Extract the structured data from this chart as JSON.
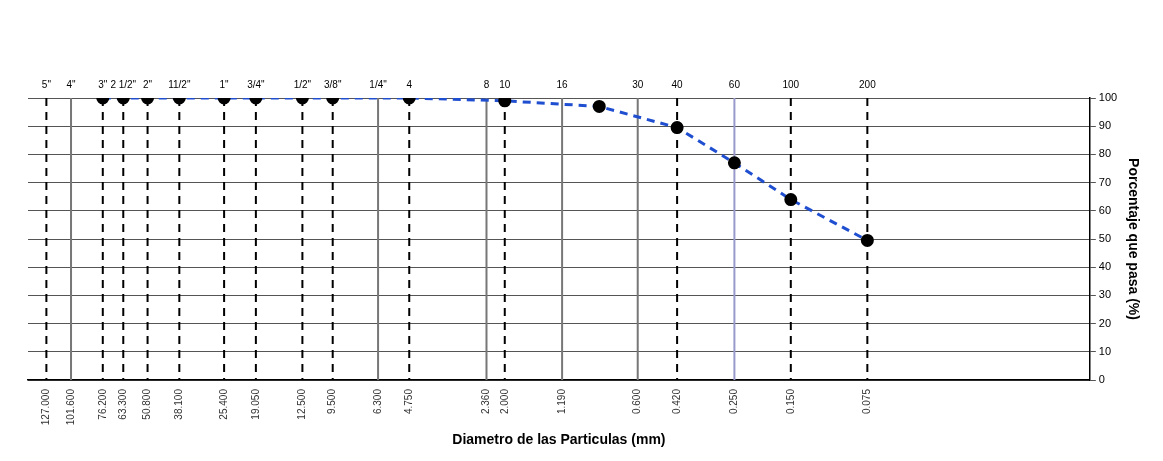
{
  "chart_data": {
    "type": "line",
    "xlabel": "Diametro de las Particulas (mm)",
    "ylabel": "Porcentaje que pasa (%)",
    "log": "x",
    "xlim": [
      150,
      0.01
    ],
    "xticks": [
      {
        "value": 127,
        "label": "127.000"
      },
      {
        "value": 101.6,
        "label": "101.600"
      },
      {
        "value": 76.2,
        "label": "76.200"
      },
      {
        "value": 63.3,
        "label": "63.300"
      },
      {
        "value": 50.8,
        "label": "50.800"
      },
      {
        "value": 38.1,
        "label": "38.100"
      },
      {
        "value": 25.4,
        "label": "25.400"
      },
      {
        "value": 19.05,
        "label": "19.050"
      },
      {
        "value": 12.5,
        "label": "12.500"
      },
      {
        "value": 9.5,
        "label": "9.500"
      },
      {
        "value": 6.3,
        "label": "6.300"
      },
      {
        "value": 4.75,
        "label": "4.750"
      },
      {
        "value": 2.36,
        "label": "2.360"
      },
      {
        "value": 2,
        "label": "2.000"
      },
      {
        "value": 1.19,
        "label": "1.190"
      },
      {
        "value": 0.6,
        "label": "0.600"
      },
      {
        "value": 0.42,
        "label": "0.420"
      },
      {
        "value": 0.25,
        "label": "0.250"
      },
      {
        "value": 0.15,
        "label": "0.150"
      },
      {
        "value": 0.075,
        "label": "0.075"
      }
    ],
    "annotations": [
      {
        "text": "5\"",
        "x": 127,
        "y": 100
      },
      {
        "text": "4\"",
        "x": 101.6,
        "y": 100
      },
      {
        "text": "3\"",
        "x": 76.2,
        "y": 100
      },
      {
        "text": "2 1/2\"",
        "x": 63.3,
        "y": 100
      },
      {
        "text": "2\"",
        "x": 50.8,
        "y": 100
      },
      {
        "text": "11/2\"",
        "x": 38.1,
        "y": 100
      },
      {
        "text": "1\"",
        "x": 25.4,
        "y": 100
      },
      {
        "text": "3/4\"",
        "x": 19.05,
        "y": 100
      },
      {
        "text": "1/2\"",
        "x": 12.5,
        "y": 100
      },
      {
        "text": "3/8\"",
        "x": 9.5,
        "y": 100
      },
      {
        "text": "1/4\"",
        "x": 6.3,
        "y": 100
      },
      {
        "text": "4",
        "x": 4.75,
        "y": 100
      },
      {
        "text": "8",
        "x": 2.36,
        "y": 100
      },
      {
        "text": "10",
        "x": 2,
        "y": 100
      },
      {
        "text": "16",
        "x": 1.19,
        "y": 100
      },
      {
        "text": "30",
        "x": 0.6,
        "y": 100
      },
      {
        "text": "40",
        "x": 0.42,
        "y": 100
      },
      {
        "text": "60",
        "x": 0.25,
        "y": 100
      },
      {
        "text": "100",
        "x": 0.15,
        "y": 100
      },
      {
        "text": "200",
        "x": 0.075,
        "y": 100
      }
    ],
    "ylim": [
      0,
      100
    ],
    "yticks": [
      0,
      10,
      20,
      30,
      40,
      50,
      60,
      70,
      80,
      90,
      100
    ],
    "grid": "y",
    "legend": false,
    "marker": "circle",
    "line_style": "dashed",
    "x": [
      76.2,
      63.3,
      50.8,
      38.1,
      25.4,
      19.05,
      12.5,
      9.5,
      4.75,
      2,
      0.85,
      0.42,
      0.25,
      0.15,
      0.075
    ],
    "series": [
      {
        "color": "#1f4fd0",
        "colors": [
          "#000000",
          "#000000",
          "#000000",
          "#000000",
          "#000000",
          "#000000",
          "#000000",
          "#000000",
          "#000000",
          "#000000",
          "#000000",
          "#000000",
          "#000000",
          "#000000",
          "#000000"
        ],
        "values": [
          100,
          100,
          100,
          100,
          100,
          100,
          100,
          100,
          100,
          99,
          97,
          89.5,
          77,
          64,
          49.5
        ]
      }
    ],
    "ref_lines": [
      {
        "axis": "x",
        "value": 127,
        "color": "#000000",
        "line_style": "dashed"
      },
      {
        "axis": "x",
        "value": 101.6,
        "color": "#777777",
        "line_style": "solid"
      },
      {
        "axis": "x",
        "value": 76.2,
        "color": "#000000",
        "line_style": "dashed"
      },
      {
        "axis": "x",
        "value": 63.3,
        "color": "#000000",
        "line_style": "dashed"
      },
      {
        "axis": "x",
        "value": 50.8,
        "color": "#000000",
        "line_style": "dashed"
      },
      {
        "axis": "x",
        "value": 38.1,
        "color": "#000000",
        "line_style": "dashed"
      },
      {
        "axis": "x",
        "value": 25.4,
        "color": "#000000",
        "line_style": "dashed"
      },
      {
        "axis": "x",
        "value": 19.05,
        "color": "#000000",
        "line_style": "dashed"
      },
      {
        "axis": "x",
        "value": 12.5,
        "color": "#000000",
        "line_style": "dashed"
      },
      {
        "axis": "x",
        "value": 9.5,
        "color": "#000000",
        "line_style": "dashed"
      },
      {
        "axis": "x",
        "value": 6.3,
        "color": "#777777",
        "line_style": "solid"
      },
      {
        "axis": "x",
        "value": 4.75,
        "color": "#000000",
        "line_style": "dashed"
      },
      {
        "axis": "x",
        "value": 2.36,
        "color": "#777777",
        "line_style": "solid"
      },
      {
        "axis": "x",
        "value": 2,
        "color": "#000000",
        "line_style": "dashed"
      },
      {
        "axis": "x",
        "value": 1.19,
        "color": "#777777",
        "line_style": "solid"
      },
      {
        "axis": "x",
        "value": 0.6,
        "color": "#777777",
        "line_style": "solid"
      },
      {
        "axis": "x",
        "value": 0.42,
        "color": "#000000",
        "line_style": "dashed"
      },
      {
        "axis": "x",
        "value": 0.25,
        "color": "#9999cc",
        "line_style": "solid"
      },
      {
        "axis": "x",
        "value": 0.15,
        "color": "#000000",
        "line_style": "dashed"
      },
      {
        "axis": "x",
        "value": 0.075,
        "color": "#000000",
        "line_style": "dashed"
      }
    ]
  }
}
